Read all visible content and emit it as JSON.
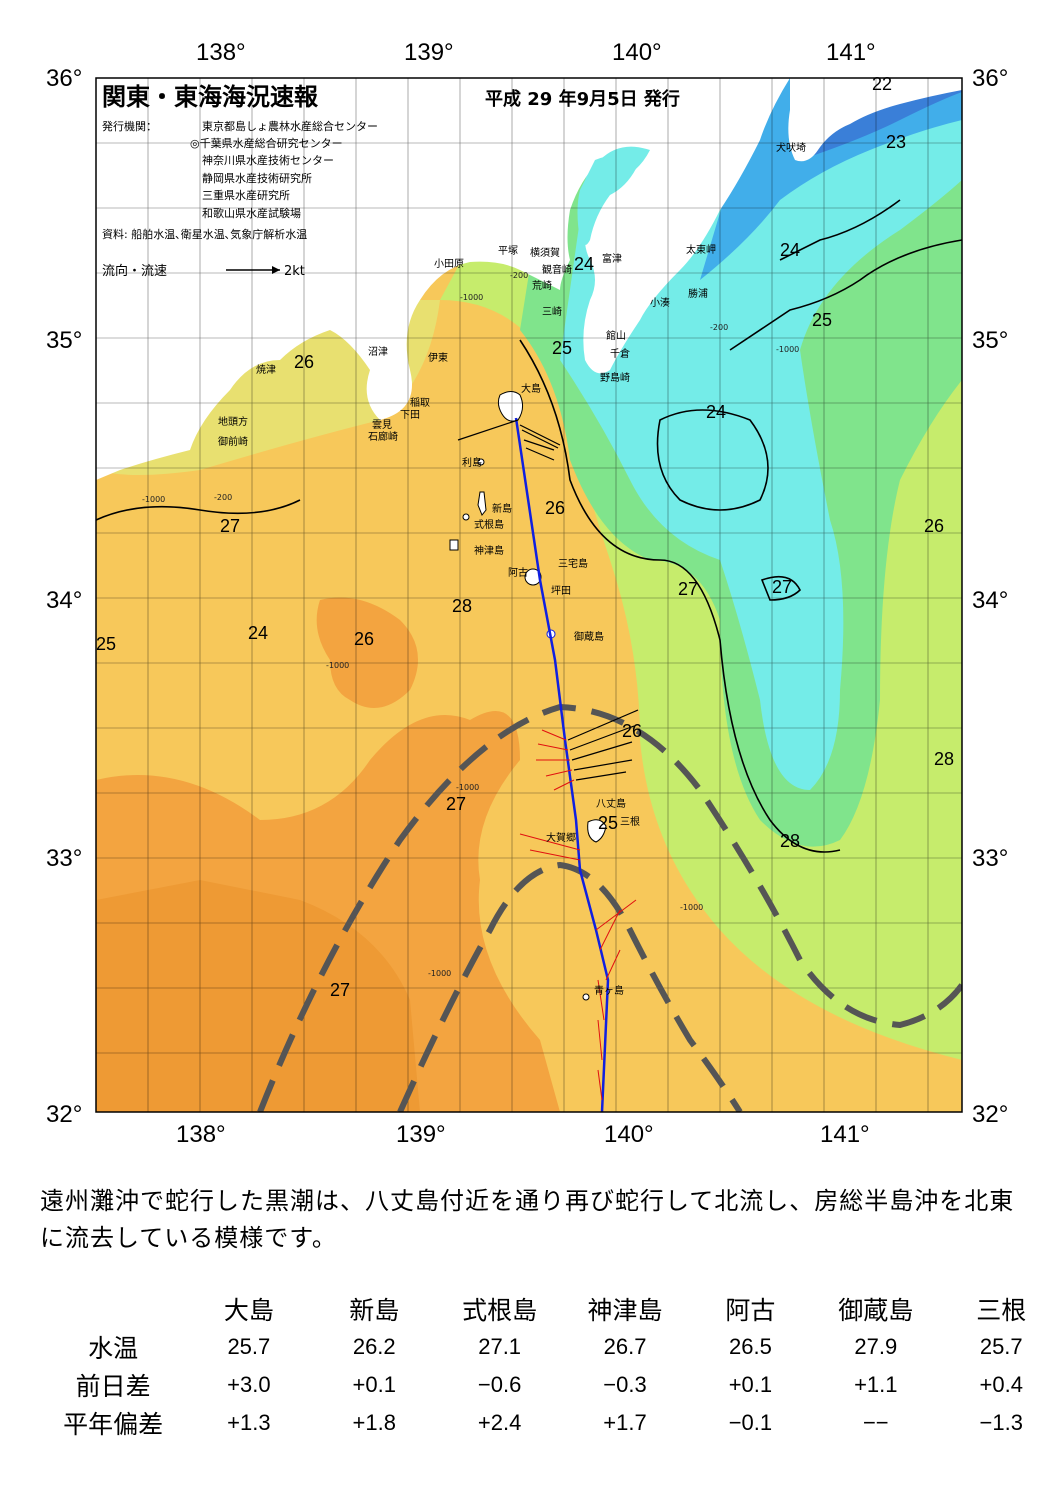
{
  "header": {
    "title": "関東・東海海況速報",
    "date": "平成 29 年9月5日 発行",
    "issuer_label": "発行機関：",
    "issuers": [
      "東京都島しょ農林水産総合センター",
      "◎千葉県水産総合研究センター",
      "神奈川県水産技術センター",
      "静岡県水産技術研究所",
      "三重県水産研究所",
      "和歌山県水産試験場"
    ],
    "sources": "資料: 船舶水温､衛星水温､気象庁解析水温",
    "legend_label": "流向・流速",
    "legend_scale": "2kt"
  },
  "axes": {
    "lon_ticks": [
      "138°",
      "139°",
      "140°",
      "141°"
    ],
    "lat_ticks": [
      "36°",
      "35°",
      "34°",
      "33°",
      "32°"
    ]
  },
  "place_names": [
    "大島",
    "利島",
    "新島",
    "式根島",
    "神津島",
    "三宅島",
    "阿古",
    "坪田",
    "御蔵島",
    "八丈島",
    "三根",
    "大賀郷",
    "青ヶ島",
    "小田原",
    "平塚",
    "横須賀",
    "観音崎",
    "富津",
    "荒崎",
    "三崎",
    "館山",
    "千倉",
    "野島崎",
    "太東岬",
    "勝浦",
    "小湊",
    "犬吠埼",
    "沼津",
    "伊東",
    "稲取",
    "下田",
    "雲見",
    "石廊崎",
    "焼津",
    "地頭方",
    "御前崎"
  ],
  "isotherm_labels": [
    "22",
    "23",
    "24",
    "24",
    "25",
    "25",
    "26",
    "24",
    "26",
    "27",
    "26",
    "27",
    "27",
    "28",
    "24",
    "25",
    "26",
    "26",
    "28",
    "27",
    "25",
    "28",
    "27"
  ],
  "depth_labels": [
    "-200",
    "-1000"
  ],
  "summary": "遠州灘沖で蛇行した黒潮は、八丈島付近を通り再び蛇行して北流し、房総半島沖を北東に流去している模様です。",
  "table": {
    "stations": [
      "大島",
      "新島",
      "式根島",
      "神津島",
      "阿古",
      "御蔵島",
      "三根"
    ],
    "rows": [
      {
        "label": "水温",
        "values": [
          "25.7",
          "26.2",
          "27.1",
          "26.7",
          "26.5",
          "27.9",
          "25.7"
        ]
      },
      {
        "label": "前日差",
        "values": [
          "+3.0",
          "+0.1",
          "−0.6",
          "−0.3",
          "+0.1",
          "+1.1",
          "+0.4"
        ]
      },
      {
        "label": "平年偏差",
        "values": [
          "+1.3",
          "+1.8",
          "+2.4",
          "+1.7",
          "−0.1",
          "−−",
          "−1.3"
        ]
      }
    ]
  },
  "colors": {
    "land": "#ffffff",
    "temp_22": "#3a7fd8",
    "temp_23": "#3fa8ec",
    "temp_24": "#6fe8f0",
    "temp_25": "#7fe88e",
    "temp_26": "#c8ee6a",
    "temp_27": "#f5dc6a",
    "temp_28": "#f5b040",
    "temp_29": "#f0a030",
    "kuroshio_axis": "#555555",
    "ship_track": "#1020e0",
    "current_vectors_ship": "#e01010",
    "current_vectors_adcp": "#000000"
  }
}
